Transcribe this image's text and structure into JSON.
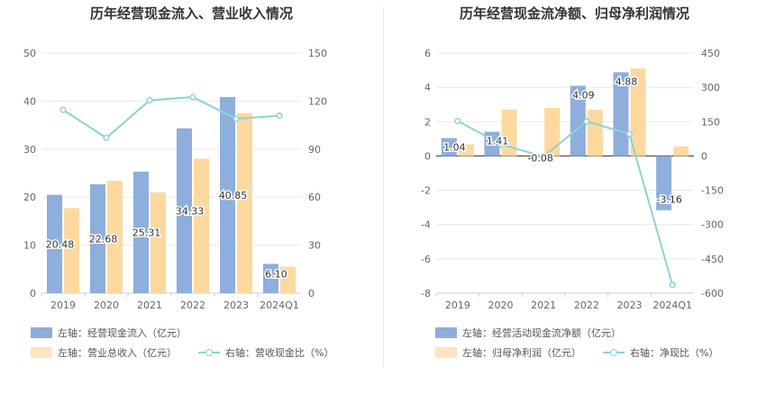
{
  "charts": [
    {
      "title": "历年经营现金流入、营业收入情况",
      "legend": {
        "bar1": "左轴：经营现金流入（亿元）",
        "bar2": "左轴：营业总收入（亿元）",
        "line": "右轴：营收现金比（%）"
      }
    },
    {
      "title": "历年经营现金流净额、归母净利润情况",
      "legend": {
        "bar1": "左轴：经营活动现金流净额（亿元）",
        "bar2": "左轴：归母净利润（亿元）",
        "line": "右轴：净现比（%）"
      }
    }
  ],
  "chart_data": [
    {
      "type": "bar",
      "title": "历年经营现金流入、营业收入情况",
      "categories": [
        "2019",
        "2020",
        "2021",
        "2022",
        "2023",
        "2024Q1"
      ],
      "left_axis": {
        "range": [
          0,
          50
        ],
        "ticks": [
          "0",
          "10",
          "20",
          "30",
          "40",
          "50"
        ]
      },
      "right_axis": {
        "range": [
          0,
          150
        ],
        "ticks": [
          "0",
          "30",
          "60",
          "90",
          "120",
          "150"
        ]
      },
      "series": [
        {
          "name": "左轴：经营现金流入（亿元）",
          "axis": "left",
          "kind": "bar",
          "color": "#8eaedc",
          "values": [
            20.48,
            22.68,
            25.31,
            34.33,
            40.85,
            6.1
          ],
          "labels": [
            "20.48",
            "22.68",
            "25.31",
            "34.33",
            "40.85",
            "6.10"
          ]
        },
        {
          "name": "左轴：营业总收入（亿元）",
          "axis": "left",
          "kind": "bar",
          "color": "#fdd9a0",
          "values": [
            17.7,
            23.4,
            21.0,
            28.0,
            37.5,
            5.5
          ]
        },
        {
          "name": "右轴：营收现金比（%）",
          "axis": "right",
          "kind": "line",
          "color": "#8cd3d8",
          "values": [
            114.5,
            97.0,
            120.5,
            122.5,
            108.9,
            110.9
          ]
        }
      ],
      "grid": true,
      "legend_position": "bottom"
    },
    {
      "type": "bar",
      "title": "历年经营现金流净额、归母净利润情况",
      "categories": [
        "2019",
        "2020",
        "2021",
        "2022",
        "2023",
        "2024Q1"
      ],
      "left_axis": {
        "range": [
          -8,
          6
        ],
        "ticks": [
          "-8",
          "-6",
          "-4",
          "-2",
          "0",
          "2",
          "4",
          "6"
        ]
      },
      "right_axis": {
        "range": [
          -600,
          450
        ],
        "ticks": [
          "-600",
          "-450",
          "-300",
          "-150",
          "0",
          "150",
          "300",
          "450"
        ]
      },
      "series": [
        {
          "name": "左轴：经营活动现金流净额（亿元）",
          "axis": "left",
          "kind": "bar",
          "color": "#8eaedc",
          "values": [
            1.04,
            1.41,
            -0.08,
            4.09,
            4.88,
            -3.16
          ],
          "labels": [
            "1.04",
            "1.41",
            "-0.08",
            "4.09",
            "4.88",
            "-3.16"
          ]
        },
        {
          "name": "左轴：归母净利润（亿元）",
          "axis": "left",
          "kind": "bar",
          "color": "#fdd9a0",
          "values": [
            0.68,
            2.7,
            2.8,
            2.7,
            5.1,
            0.56
          ]
        },
        {
          "name": "右轴：净现比（%）",
          "axis": "right",
          "kind": "line",
          "color": "#8cd3d8",
          "values": [
            153,
            52,
            -3,
            151,
            96,
            -564
          ]
        }
      ],
      "grid": true,
      "legend_position": "bottom"
    }
  ]
}
